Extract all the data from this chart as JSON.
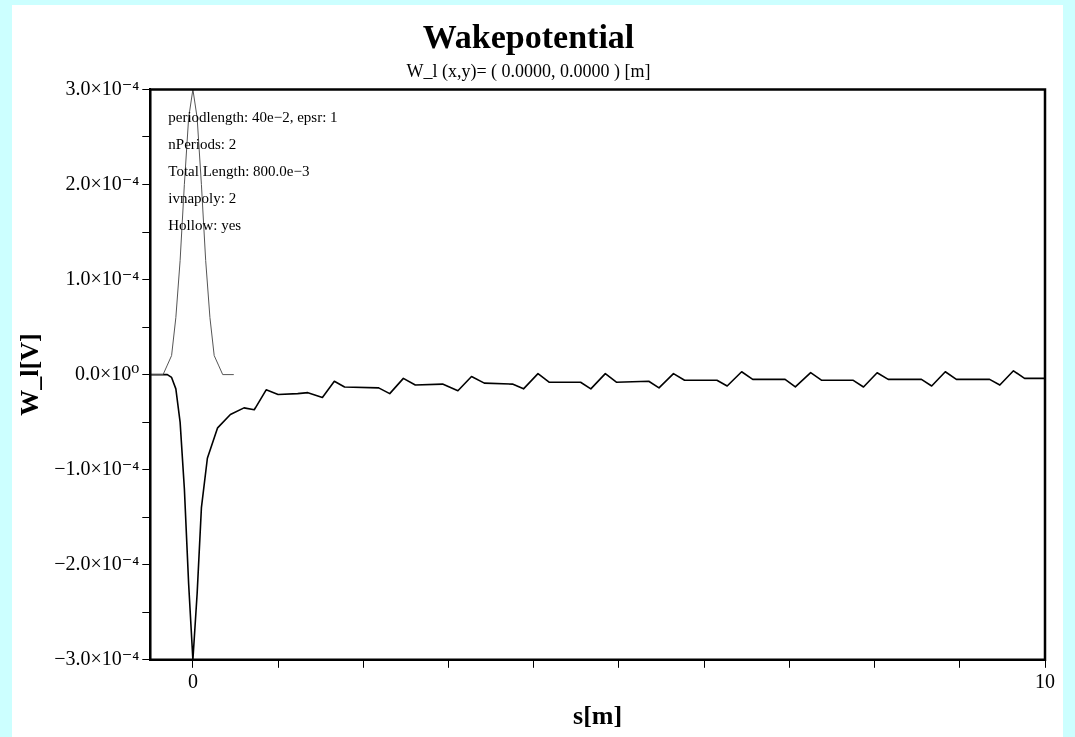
{
  "chart_data": {
    "type": "line",
    "title": "Wakepotential",
    "subtitle": "W_l (x,y)= ( 0.0000, 0.0000 ) [m]",
    "xlabel": "s[m]",
    "ylabel": "W_l[V]",
    "annotations": [
      "periodlength: 40e−2, epsr: 1",
      "nPeriods: 2",
      "Total Length: 800.0e−3",
      "ivnapoly: 2",
      "Hollow: yes"
    ],
    "xlim": [
      -0.5,
      10
    ],
    "xticks": [
      {
        "value": 0,
        "label": "0"
      },
      {
        "value": 1,
        "label": null
      },
      {
        "value": 2,
        "label": null
      },
      {
        "value": 3,
        "label": null
      },
      {
        "value": 4,
        "label": null
      },
      {
        "value": 5,
        "label": null
      },
      {
        "value": 6,
        "label": null
      },
      {
        "value": 7,
        "label": null
      },
      {
        "value": 8,
        "label": null
      },
      {
        "value": 9,
        "label": null
      },
      {
        "value": 10,
        "label": "10"
      }
    ],
    "ylim": [
      -0.0003,
      0.0003
    ],
    "yticks": [
      {
        "value": -0.0003,
        "label": "−3.0×10⁻⁴"
      },
      {
        "value": -0.00025,
        "label": null
      },
      {
        "value": -0.0002,
        "label": "−2.0×10⁻⁴"
      },
      {
        "value": -0.00015,
        "label": null
      },
      {
        "value": -0.0001,
        "label": "−1.0×10⁻⁴"
      },
      {
        "value": -5e-05,
        "label": null
      },
      {
        "value": 0,
        "label": "0.0×10⁰"
      },
      {
        "value": 5e-05,
        "label": null
      },
      {
        "value": 0.0001,
        "label": "1.0×10⁻⁴"
      },
      {
        "value": 0.00015,
        "label": null
      },
      {
        "value": 0.0002,
        "label": "2.0×10⁻⁴"
      },
      {
        "value": 0.00025,
        "label": null
      },
      {
        "value": 0.0003,
        "label": "3.0×10⁻⁴"
      }
    ],
    "series": [
      {
        "color": "#555555",
        "x": [
          -0.5,
          -0.35,
          -0.3,
          -0.25,
          -0.2,
          -0.15,
          -0.1,
          -0.05,
          0,
          0.05,
          0.1,
          0.15,
          0.2,
          0.25,
          0.3,
          0.35,
          0.48
        ],
        "values": [
          0,
          0,
          1e-05,
          2e-05,
          6e-05,
          0.00012,
          0.0002,
          0.00027,
          0.0003,
          0.00027,
          0.0002,
          0.00012,
          6e-05,
          2e-05,
          1e-05,
          0,
          0
        ]
      },
      {
        "color": "#000000",
        "x": [
          -0.5,
          -0.3,
          -0.25,
          -0.2,
          -0.15,
          -0.1,
          -0.05,
          0,
          0.05,
          0.1,
          0.17,
          0.29,
          0.44,
          0.6,
          0.72,
          0.86,
          1.0,
          1.23,
          1.35,
          1.52,
          1.66,
          1.78,
          2.18,
          2.31,
          2.47,
          2.61,
          2.93,
          3.11,
          3.27,
          3.42,
          3.75,
          3.88,
          4.05,
          4.18,
          4.55,
          4.67,
          4.84,
          4.97,
          5.35,
          5.47,
          5.64,
          5.77,
          6.15,
          6.27,
          6.44,
          6.57,
          6.95,
          7.07,
          7.25,
          7.38,
          7.75,
          7.87,
          8.03,
          8.16,
          8.55,
          8.67,
          8.83,
          8.96,
          9.35,
          9.47,
          9.63,
          9.76,
          10
        ],
        "values": [
          0,
          0,
          -3e-06,
          -1.5e-05,
          -5e-05,
          -0.00012,
          -0.00022,
          -0.0003,
          -0.00023,
          -0.00014,
          -8.8e-05,
          -5.6e-05,
          -4.2e-05,
          -3.5e-05,
          -3.7e-05,
          -1.6e-05,
          -2.1e-05,
          -2e-05,
          -1.9e-05,
          -2.4e-05,
          -7e-06,
          -1.3e-05,
          -1.4e-05,
          -2e-05,
          -4e-06,
          -1.1e-05,
          -1e-05,
          -1.7e-05,
          -2e-06,
          -9e-06,
          -1e-05,
          -1.5e-05,
          1e-06,
          -8e-06,
          -8e-06,
          -1.5e-05,
          1e-06,
          -8e-06,
          -7e-06,
          -1.4e-05,
          1e-06,
          -6e-06,
          -6e-06,
          -1.2e-05,
          3e-06,
          -5e-06,
          -5e-06,
          -1.3e-05,
          2e-06,
          -6e-06,
          -6e-06,
          -1.3e-05,
          2e-06,
          -5e-06,
          -5e-06,
          -1.2e-05,
          3e-06,
          -5e-06,
          -5e-06,
          -1.1e-05,
          4e-06,
          -4e-06,
          -4e-06
        ]
      }
    ]
  }
}
